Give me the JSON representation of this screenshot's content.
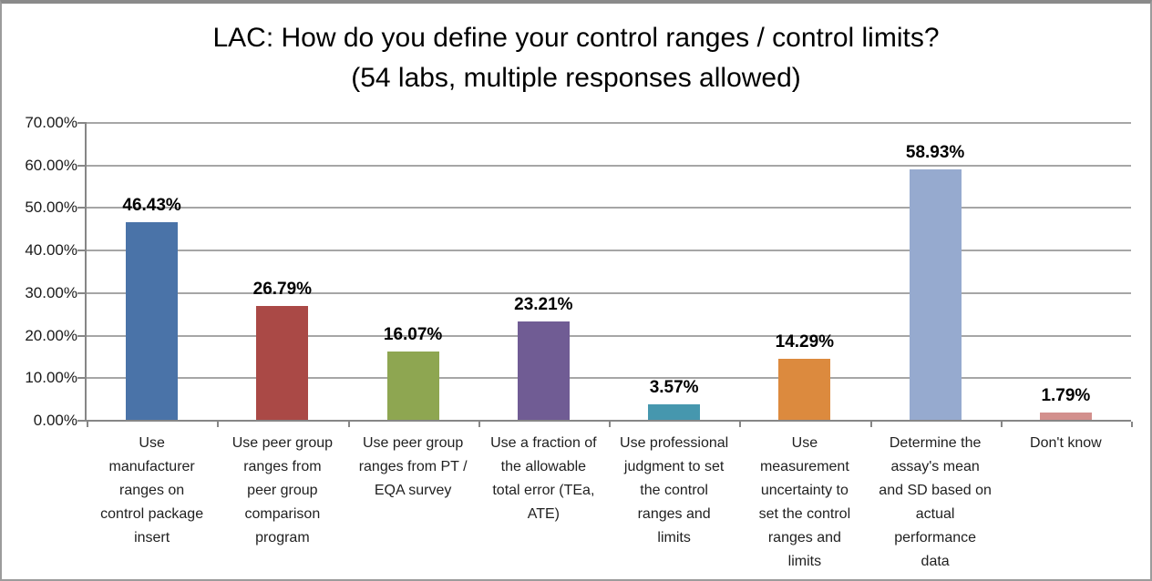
{
  "title": {
    "line1": "LAC: How do you define your control ranges / control limits?",
    "line2": "(54 labs, multiple responses allowed)"
  },
  "chart_data": {
    "type": "bar",
    "title": "LAC: How do you define your control ranges / control limits?",
    "subtitle": "(54 labs, multiple responses allowed)",
    "categories": [
      "Use\nmanufacturer\nranges on\ncontrol package\ninsert",
      "Use peer group\nranges from\npeer group\ncomparison\nprogram",
      "Use peer group\nranges from PT /\nEQA survey",
      "Use a fraction of\nthe allowable\ntotal error (TEa,\nATE)",
      "Use professional\njudgment to set\nthe control\nranges and\nlimits",
      "Use\nmeasurement\nuncertainty to\nset the control\nranges and\nlimits",
      "Determine the\nassay's mean\nand SD based on\nactual\nperformance\ndata",
      "Don't know"
    ],
    "values": [
      46.43,
      26.79,
      16.07,
      23.21,
      3.57,
      14.29,
      58.93,
      1.79
    ],
    "value_labels": [
      "46.43%",
      "26.79%",
      "16.07%",
      "23.21%",
      "3.57%",
      "14.29%",
      "58.93%",
      "1.79%"
    ],
    "bar_colors": [
      "#4A73A8",
      "#AA4946",
      "#8EA651",
      "#705C94",
      "#4697AE",
      "#DC8A3E",
      "#96AACF",
      "#D3908D"
    ],
    "xlabel": "",
    "ylabel": "",
    "ylim": [
      0,
      70
    ],
    "y_ticks": [
      "70.00%",
      "60.00%",
      "50.00%",
      "40.00%",
      "30.00%",
      "20.00%",
      "10.00%",
      "0.00%"
    ],
    "grid": "horizontal",
    "legend": "none"
  },
  "colors": {
    "gridline": "#a6a6a6",
    "axis": "#868686",
    "frame_border": "#9c9c9c",
    "title_text": "#000000",
    "tick_text": "#1a1a1a",
    "value_label_text": "#000000"
  }
}
